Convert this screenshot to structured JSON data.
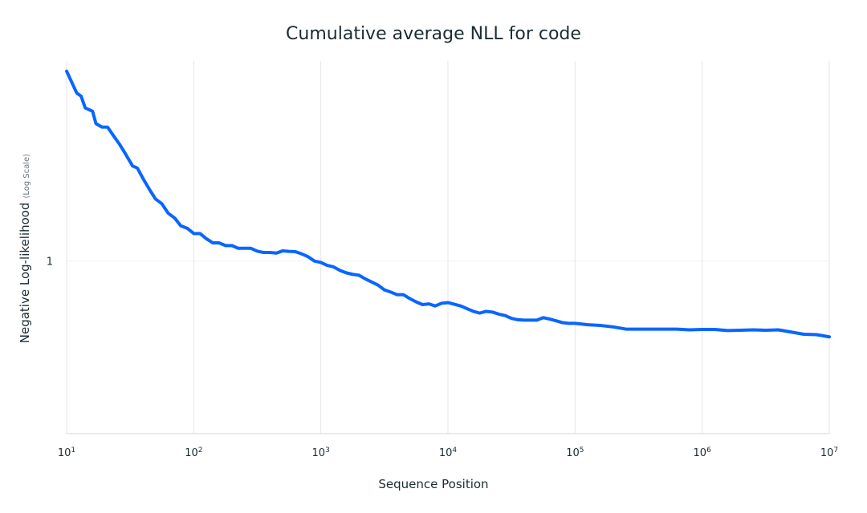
{
  "chart_data": {
    "type": "line",
    "title": "Cumulative average NLL for code",
    "xlabel": "Sequence Position",
    "ylabel": "Negative Log-likelihood",
    "ylabel_note": "(Log Scale)",
    "x_scale": "log",
    "y_scale": "log",
    "xlim": [
      10,
      10000000
    ],
    "ylim": [
      0.55,
      2.0
    ],
    "x_ticks": [
      {
        "base": "10",
        "exp": "1",
        "value": 10
      },
      {
        "base": "10",
        "exp": "2",
        "value": 100
      },
      {
        "base": "10",
        "exp": "3",
        "value": 1000
      },
      {
        "base": "10",
        "exp": "4",
        "value": 10000
      },
      {
        "base": "10",
        "exp": "5",
        "value": 100000
      },
      {
        "base": "10",
        "exp": "6",
        "value": 1000000
      },
      {
        "base": "10",
        "exp": "7",
        "value": 10000000
      }
    ],
    "y_ticks": [
      {
        "label": "1",
        "value": 1
      }
    ],
    "grid": "vertical",
    "line_color": "#0866ff",
    "series": [
      {
        "x": [
          10,
          12,
          13,
          14,
          16,
          17,
          19,
          21,
          23,
          26,
          29,
          33,
          36,
          40,
          45,
          50,
          56,
          63,
          71,
          79,
          89,
          100,
          112,
          126,
          141,
          158,
          178,
          200,
          224,
          251,
          282,
          316,
          355,
          398,
          447,
          501,
          562,
          631,
          708,
          794,
          891,
          1000,
          1122,
          1259,
          1413,
          1585,
          1778,
          1995,
          2239,
          2512,
          2818,
          3162,
          3548,
          3981,
          4467,
          5012,
          5623,
          6310,
          7079,
          7943,
          8913,
          10000,
          11220,
          12589,
          14125,
          15849,
          17783,
          19953,
          22387,
          25119,
          28184,
          31623,
          35481,
          39811,
          44668,
          50119,
          56234,
          63096,
          70795,
          79433,
          89125,
          100000,
          125893,
          158489,
          199526,
          251189,
          316228,
          398107,
          501187,
          630957,
          794328,
          1000000,
          1258925,
          1584893,
          1995262,
          2511886,
          3162278,
          3981072,
          5011872,
          6309573,
          7943282,
          10000000
        ],
        "y": [
          1.93,
          1.79,
          1.77,
          1.7,
          1.68,
          1.61,
          1.59,
          1.59,
          1.55,
          1.5,
          1.45,
          1.39,
          1.38,
          1.33,
          1.28,
          1.24,
          1.22,
          1.18,
          1.16,
          1.13,
          1.12,
          1.1,
          1.1,
          1.08,
          1.065,
          1.065,
          1.055,
          1.055,
          1.045,
          1.045,
          1.045,
          1.035,
          1.03,
          1.03,
          1.028,
          1.036,
          1.034,
          1.033,
          1.025,
          1.015,
          1.0,
          0.995,
          0.985,
          0.98,
          0.968,
          0.96,
          0.955,
          0.952,
          0.94,
          0.93,
          0.92,
          0.905,
          0.898,
          0.89,
          0.89,
          0.878,
          0.868,
          0.86,
          0.862,
          0.856,
          0.864,
          0.866,
          0.861,
          0.856,
          0.848,
          0.84,
          0.835,
          0.84,
          0.838,
          0.832,
          0.828,
          0.82,
          0.816,
          0.815,
          0.815,
          0.815,
          0.822,
          0.818,
          0.813,
          0.808,
          0.806,
          0.806,
          0.802,
          0.8,
          0.796,
          0.79,
          0.79,
          0.79,
          0.79,
          0.79,
          0.788,
          0.789,
          0.789,
          0.786,
          0.787,
          0.788,
          0.787,
          0.788,
          0.782,
          0.776,
          0.775,
          0.769
        ]
      }
    ]
  }
}
